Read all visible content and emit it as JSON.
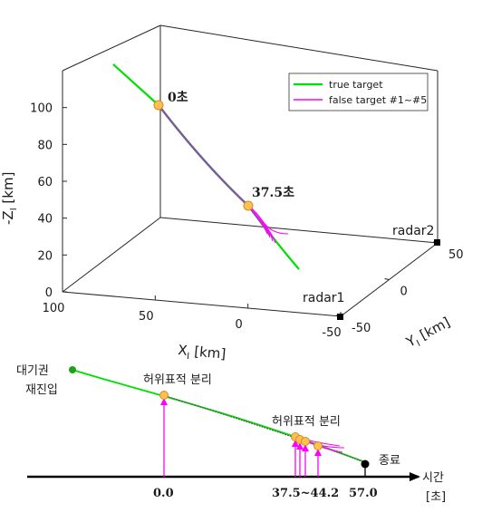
{
  "chart_data": [
    {
      "type": "line",
      "subtype": "3d-trajectory",
      "axes": {
        "x": {
          "label": "X",
          "label_sub": "I",
          "unit": "[km]",
          "ticks": [
            "100",
            "50",
            "0",
            "-50"
          ],
          "range": [
            -50,
            100
          ]
        },
        "y": {
          "label": "Y",
          "label_sub": "I",
          "unit": "[km]",
          "ticks": [
            "-50",
            "0",
            "50"
          ],
          "range": [
            -50,
            50
          ]
        },
        "z": {
          "label": "-Z",
          "label_sub": "I",
          "unit": "[km]",
          "ticks": [
            "0",
            "20",
            "40",
            "60",
            "80",
            "100"
          ],
          "range": [
            0,
            120
          ]
        }
      },
      "grid": false,
      "legend": {
        "position": "top-right",
        "entries": [
          {
            "label": "true target",
            "color": "#00e000"
          },
          {
            "label": "false target #1~#5",
            "color": "#ff00ff"
          }
        ]
      },
      "annotations": [
        "0초",
        "37.5초"
      ],
      "radars": [
        {
          "name": "radar1",
          "x": -50,
          "y": -50,
          "z": 0
        },
        {
          "name": "radar2",
          "x": -50,
          "y": 50,
          "z": 0
        }
      ],
      "true_target_path": [
        {
          "x": 100,
          "y": -25,
          "z": 120
        },
        {
          "x": 85,
          "y": -15,
          "z": 100
        },
        {
          "x": 55,
          "y": 5,
          "z": 70
        },
        {
          "x": 25,
          "y": 20,
          "z": 40
        },
        {
          "x": 5,
          "y": 32,
          "z": 15
        }
      ],
      "event_markers": [
        {
          "label": "0초",
          "x": 85,
          "y": -15,
          "z": 100
        },
        {
          "label": "37.5초",
          "x": 32,
          "y": 17,
          "z": 45
        }
      ],
      "colors": {
        "true": "#00e000",
        "false": "#ff00ff",
        "marker_fill": "#ffc04d",
        "marker_edge": "#d08a2a"
      }
    },
    {
      "type": "timeline",
      "labels": {
        "reentry": "대기권\n재진입",
        "separation_1": "허위표적 분리",
        "separation_2": "허위표적 분리",
        "end": "종료",
        "time_axis": "시간\n[초]"
      },
      "ticks": [
        "0.0",
        "37.5~44.2",
        "57.0"
      ],
      "events": [
        {
          "name": "reentry",
          "time": null
        },
        {
          "name": "separation_1",
          "time": 0.0
        },
        {
          "name": "separation_2",
          "time_range": [
            37.5,
            44.2
          ]
        },
        {
          "name": "end",
          "time": 57.0
        }
      ],
      "false_target_separation_count": 5
    }
  ]
}
